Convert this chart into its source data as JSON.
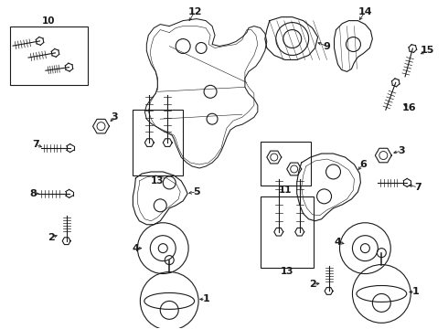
{
  "bg_color": "#ffffff",
  "line_color": "#1a1a1a",
  "fig_width": 4.9,
  "fig_height": 3.6,
  "dpi": 100,
  "border_lw": 0.7,
  "part_lw": 0.8
}
